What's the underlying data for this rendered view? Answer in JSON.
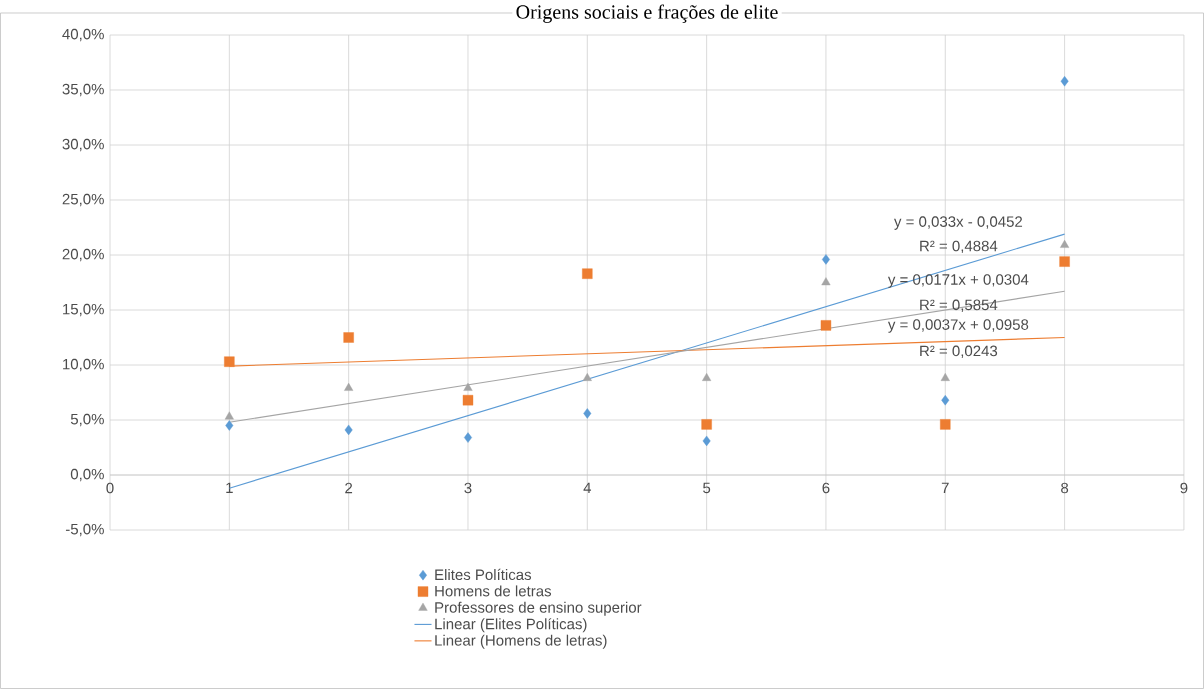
{
  "chart_data": {
    "type": "scatter",
    "title": "Origens sociais e frações de elite",
    "xlim": [
      0,
      9
    ],
    "xticks": [
      0,
      1,
      2,
      3,
      4,
      5,
      6,
      7,
      8,
      9
    ],
    "ylim": [
      -5,
      40
    ],
    "yticks": [
      {
        "value": -5,
        "label": "-5,0%"
      },
      {
        "value": 0,
        "label": "0,0%"
      },
      {
        "value": 5,
        "label": "5,0%"
      },
      {
        "value": 10,
        "label": "10,0%"
      },
      {
        "value": 15,
        "label": "15,0%"
      },
      {
        "value": 20,
        "label": "20,0%"
      },
      {
        "value": 25,
        "label": "25,0%"
      },
      {
        "value": 30,
        "label": "30,0%"
      },
      {
        "value": 35,
        "label": "35,0%"
      },
      {
        "value": 40,
        "label": "40,0%"
      }
    ],
    "grid": true,
    "legend": "bottom",
    "series": [
      {
        "name": "Elites Políticas",
        "marker": "diamond",
        "color": "#5b9bd5",
        "x": [
          1,
          2,
          3,
          4,
          5,
          6,
          7,
          8
        ],
        "values": [
          4.5,
          4.1,
          3.4,
          5.6,
          3.1,
          19.6,
          6.8,
          35.8
        ]
      },
      {
        "name": "Homens de letras",
        "marker": "square",
        "color": "#ed7d31",
        "x": [
          1,
          2,
          3,
          4,
          5,
          6,
          7,
          8
        ],
        "values": [
          10.3,
          12.5,
          6.8,
          18.3,
          4.6,
          13.6,
          4.6,
          19.4
        ]
      },
      {
        "name": "Professores de ensino superior",
        "marker": "triangle",
        "color": "#a5a5a5",
        "x": [
          1,
          2,
          3,
          4,
          5,
          6,
          7,
          8
        ],
        "values": [
          5.3,
          7.9,
          7.9,
          8.8,
          8.8,
          17.5,
          8.8,
          20.9
        ]
      },
      {
        "name": "Linear (Elites Políticas)",
        "type": "line",
        "color": "#5b9bd5",
        "x": [
          1,
          8
        ],
        "values": [
          -1.2,
          21.9
        ]
      },
      {
        "name": "Linear (Homens de letras)",
        "type": "line",
        "color": "#ed7d31",
        "x": [
          1,
          8
        ],
        "values": [
          9.9,
          12.5
        ]
      },
      {
        "type": "line",
        "color": "#a5a5a5",
        "x": [
          1,
          8
        ],
        "values": [
          4.8,
          16.7
        ]
      }
    ],
    "annotations": [
      "y = 0,033x - 0,0452",
      "R² = 0,4884",
      "y = 0,0171x + 0,0304",
      "R² = 0,5854",
      "y = 0,0037x + 0,0958",
      "R² = 0,0243"
    ]
  }
}
